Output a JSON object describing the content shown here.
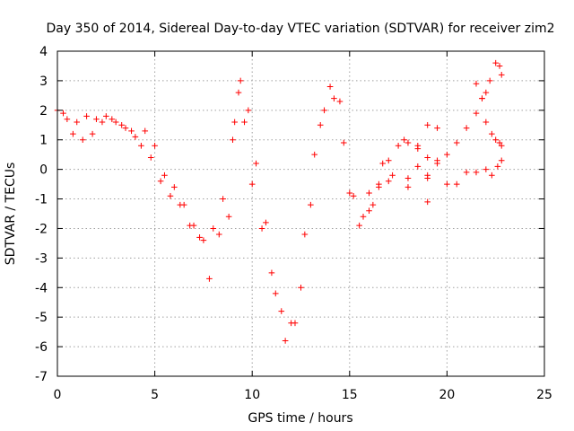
{
  "chart_data": {
    "type": "scatter",
    "title": "Day 350 of 2014, Sidereal Day-to-day VTEC variation (SDTVAR) for receiver zim2",
    "xlabel": "GPS time / hours",
    "ylabel": "SDTVAR / TECUs",
    "xlim": [
      0,
      25
    ],
    "ylim": [
      -7,
      4
    ],
    "xticks": [
      "0",
      "5",
      "10",
      "15",
      "20",
      "25"
    ],
    "yticks": [
      "4",
      "3",
      "2",
      "1",
      "0",
      "-1",
      "-2",
      "-3",
      "-4",
      "-5",
      "-6",
      "-7"
    ],
    "grid": true,
    "marker": "plus",
    "color": "#ff0000",
    "series": [
      {
        "x": [
          0.0,
          0.5,
          1.0,
          1.5,
          2.0,
          2.5,
          3.0,
          3.5,
          4.0,
          4.5,
          5.0,
          5.5,
          6.0,
          6.5,
          7.0,
          7.5,
          8.0,
          8.5,
          9.0,
          9.3,
          9.6,
          10.0,
          10.5,
          11.0,
          11.5,
          12.0,
          12.5,
          13.0,
          13.5,
          14.0,
          14.5,
          15.0,
          15.5,
          16.0,
          16.5,
          17.0,
          18.0,
          19.0
        ],
        "y": [
          2.0,
          1.7,
          1.6,
          1.8,
          1.7,
          1.8,
          1.6,
          1.4,
          1.1,
          1.3,
          0.8,
          -0.2,
          -0.6,
          -1.2,
          -1.9,
          -2.4,
          -2.0,
          -1.0,
          1.0,
          2.6,
          1.6,
          -0.5,
          -2.0,
          -3.5,
          -4.8,
          -5.2,
          -4.0,
          -1.2,
          1.5,
          2.8,
          2.3,
          -0.8,
          -1.9,
          -1.4,
          -0.6,
          -0.4,
          -0.3,
          -1.1
        ]
      },
      {
        "x": [
          0.3,
          0.8,
          1.3,
          1.8,
          2.3,
          2.8,
          3.3,
          3.8,
          4.3,
          4.8,
          5.3,
          5.8,
          6.3,
          6.8,
          7.3,
          7.8,
          8.3,
          8.8,
          9.1,
          9.4,
          9.8,
          10.2,
          10.7,
          11.2,
          11.7,
          12.2,
          12.7,
          13.2,
          13.7,
          14.2,
          14.7,
          15.2,
          15.7,
          16.2,
          16.7,
          17.2,
          17.8,
          18.5,
          19.0,
          19.5
        ],
        "y": [
          1.9,
          1.2,
          1.0,
          1.2,
          1.6,
          1.7,
          1.5,
          1.3,
          0.8,
          0.4,
          -0.4,
          -0.9,
          -1.2,
          -1.9,
          -2.3,
          -3.7,
          -2.2,
          -1.6,
          1.6,
          3.0,
          2.0,
          0.2,
          -1.8,
          -4.2,
          -5.8,
          -5.2,
          -2.2,
          0.5,
          2.0,
          2.4,
          0.9,
          -0.9,
          -1.6,
          -1.2,
          0.2,
          -0.2,
          1.0,
          0.8,
          1.5,
          1.4
        ]
      },
      {
        "x": [
          18.0,
          18.5,
          19.0,
          19.5,
          20.0,
          20.5,
          21.0,
          21.5,
          22.0,
          22.3,
          22.6,
          22.8
        ],
        "y": [
          -0.6,
          0.1,
          -0.3,
          0.3,
          -0.5,
          -0.5,
          -0.1,
          -0.1,
          0.0,
          -0.2,
          0.1,
          0.3
        ]
      },
      {
        "x": [
          19.0,
          19.5,
          20.0,
          20.5,
          21.0,
          21.5,
          21.8,
          22.0,
          22.2,
          22.5,
          22.7,
          22.8
        ],
        "y": [
          -0.2,
          0.2,
          0.5,
          0.9,
          1.4,
          1.9,
          2.4,
          2.6,
          3.0,
          3.6,
          3.5,
          3.2
        ]
      },
      {
        "x": [
          21.5,
          21.8,
          22.0,
          22.3,
          22.5,
          22.7,
          22.8
        ],
        "y": [
          2.9,
          2.4,
          1.6,
          1.2,
          1.0,
          0.9,
          0.8
        ]
      },
      {
        "x": [
          16.0,
          16.5,
          17.0,
          17.5,
          18.0,
          18.5,
          19.0
        ],
        "y": [
          -0.8,
          -0.5,
          0.3,
          0.8,
          0.9,
          0.7,
          0.4
        ]
      }
    ]
  }
}
